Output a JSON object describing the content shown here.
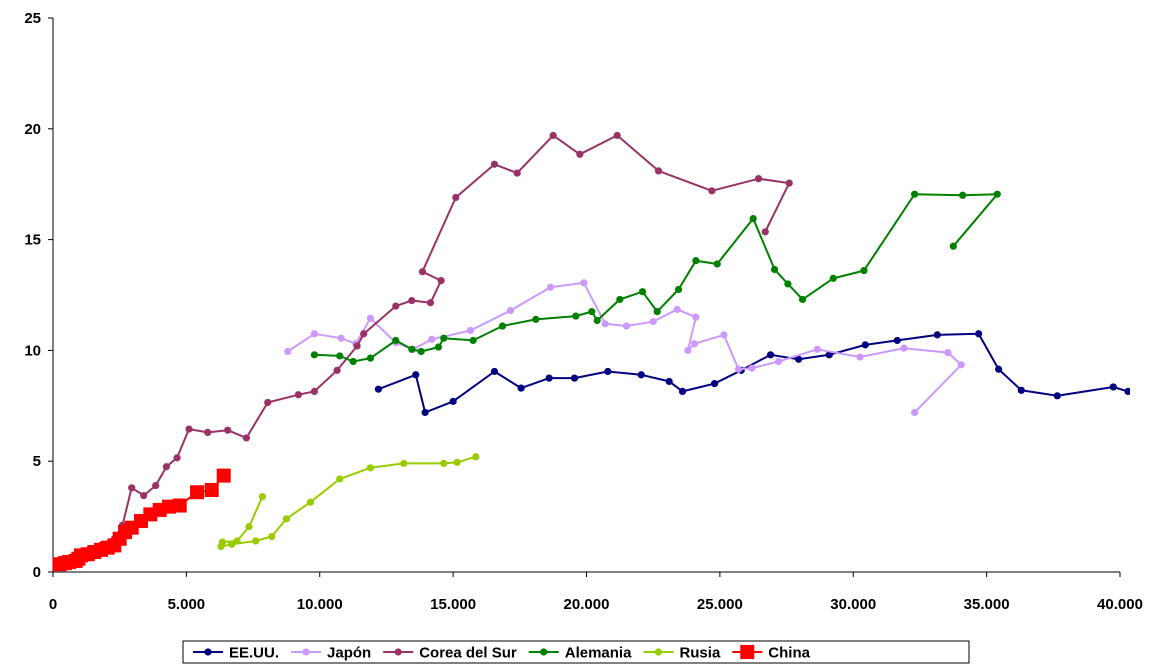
{
  "chart_data": {
    "type": "line",
    "title": "",
    "xlabel": "",
    "ylabel": "",
    "xlim": [
      0,
      40000
    ],
    "ylim": [
      0,
      25
    ],
    "x_ticks": [
      0,
      5000,
      10000,
      15000,
      20000,
      25000,
      30000,
      35000,
      40000
    ],
    "x_tick_labels": [
      "0",
      "5.000",
      "10.000",
      "15.000",
      "20.000",
      "25.000",
      "30.000",
      "35.000",
      "40.000"
    ],
    "y_ticks": [
      0,
      5,
      10,
      15,
      20,
      25
    ],
    "y_tick_labels": [
      "0",
      "5",
      "10",
      "15",
      "20",
      "25"
    ],
    "grid": false,
    "legend_position": "bottom",
    "series": [
      {
        "name": "EE.UU.",
        "color": "#000080",
        "marker": "circle",
        "points": [
          [
            12200,
            8.25
          ],
          [
            13600,
            8.9
          ],
          [
            13950,
            7.2
          ],
          [
            15000,
            7.7
          ],
          [
            16550,
            9.05
          ],
          [
            17550,
            8.3
          ],
          [
            18600,
            8.75
          ],
          [
            19550,
            8.75
          ],
          [
            20800,
            9.05
          ],
          [
            22050,
            8.9
          ],
          [
            23100,
            8.6
          ],
          [
            23600,
            8.15
          ],
          [
            24800,
            8.5
          ],
          [
            25800,
            9.1
          ],
          [
            26900,
            9.8
          ],
          [
            27950,
            9.6
          ],
          [
            29100,
            9.8
          ],
          [
            30450,
            10.25
          ],
          [
            31650,
            10.45
          ],
          [
            33150,
            10.7
          ],
          [
            34700,
            10.75
          ],
          [
            35450,
            9.15
          ],
          [
            36300,
            8.2
          ],
          [
            37650,
            7.95
          ],
          [
            39750,
            8.35
          ],
          [
            40300,
            8.15
          ]
        ]
      },
      {
        "name": "Japón",
        "color": "#cc99ff",
        "marker": "circle",
        "points": [
          [
            8800,
            9.95
          ],
          [
            9800,
            10.75
          ],
          [
            10800,
            10.55
          ],
          [
            11350,
            10.3
          ],
          [
            11900,
            11.45
          ],
          [
            12850,
            10.35
          ],
          [
            13500,
            10.05
          ],
          [
            14200,
            10.5
          ],
          [
            15650,
            10.9
          ],
          [
            17150,
            11.8
          ],
          [
            18650,
            12.85
          ],
          [
            19900,
            13.05
          ],
          [
            20700,
            11.2
          ],
          [
            21500,
            11.1
          ],
          [
            22500,
            11.3
          ],
          [
            23400,
            11.85
          ],
          [
            24100,
            11.5
          ],
          [
            23800,
            10
          ],
          [
            24050,
            10.3
          ],
          [
            25150,
            10.7
          ],
          [
            25700,
            9.15
          ],
          [
            26200,
            9.2
          ],
          [
            27200,
            9.5
          ],
          [
            28650,
            10.05
          ],
          [
            30250,
            9.7
          ],
          [
            31900,
            10.1
          ],
          [
            33550,
            9.9
          ],
          [
            34050,
            9.35
          ],
          [
            32300,
            7.2
          ]
        ]
      },
      {
        "name": "Corea del Sur",
        "color": "#993366",
        "marker": "circle",
        "points": [
          [
            1100,
            0.85
          ],
          [
            1400,
            1.05
          ],
          [
            1800,
            1.2
          ],
          [
            2300,
            1.5
          ],
          [
            2600,
            2.1
          ],
          [
            2950,
            3.8
          ],
          [
            3400,
            3.45
          ],
          [
            3850,
            3.9
          ],
          [
            4250,
            4.75
          ],
          [
            4650,
            5.15
          ],
          [
            5100,
            6.45
          ],
          [
            5800,
            6.3
          ],
          [
            6550,
            6.4
          ],
          [
            7250,
            6.05
          ],
          [
            8050,
            7.65
          ],
          [
            9200,
            8.0
          ],
          [
            9800,
            8.15
          ],
          [
            10650,
            9.1
          ],
          [
            11400,
            10.2
          ],
          [
            11650,
            10.75
          ],
          [
            12850,
            12.0
          ],
          [
            13450,
            12.25
          ],
          [
            14150,
            12.15
          ],
          [
            14550,
            13.15
          ],
          [
            13850,
            13.55
          ],
          [
            15100,
            16.9
          ],
          [
            16550,
            18.4
          ],
          [
            17400,
            18.0
          ],
          [
            18750,
            19.7
          ],
          [
            19750,
            18.85
          ],
          [
            21150,
            19.7
          ],
          [
            22700,
            18.1
          ],
          [
            24700,
            17.2
          ],
          [
            26450,
            17.75
          ],
          [
            27600,
            17.55
          ],
          [
            26700,
            15.35
          ]
        ]
      },
      {
        "name": "Alemania",
        "color": "#008000",
        "marker": "circle",
        "points": [
          [
            9800,
            9.8
          ],
          [
            10750,
            9.75
          ],
          [
            11250,
            9.5
          ],
          [
            11900,
            9.65
          ],
          [
            12850,
            10.45
          ],
          [
            13450,
            10.05
          ],
          [
            13800,
            9.95
          ],
          [
            14450,
            10.15
          ],
          [
            14650,
            10.55
          ],
          [
            15750,
            10.45
          ],
          [
            16850,
            11.1
          ],
          [
            18100,
            11.4
          ],
          [
            19600,
            11.55
          ],
          [
            20200,
            11.75
          ],
          [
            20400,
            11.35
          ],
          [
            21250,
            12.3
          ],
          [
            22100,
            12.65
          ],
          [
            22650,
            11.75
          ],
          [
            23450,
            12.75
          ],
          [
            24100,
            14.05
          ],
          [
            24900,
            13.9
          ],
          [
            26250,
            15.95
          ],
          [
            27050,
            13.65
          ],
          [
            27550,
            13.0
          ],
          [
            28100,
            12.3
          ],
          [
            29250,
            13.25
          ],
          [
            30400,
            13.6
          ],
          [
            32300,
            17.05
          ],
          [
            34100,
            17.0
          ],
          [
            35400,
            17.05
          ],
          [
            33750,
            14.7
          ]
        ]
      },
      {
        "name": "Rusia",
        "color": "#99cc00",
        "marker": "circle",
        "points": [
          [
            7850,
            3.4
          ],
          [
            7350,
            2.05
          ],
          [
            6900,
            1.4
          ],
          [
            6350,
            1.35
          ],
          [
            6300,
            1.15
          ],
          [
            6700,
            1.25
          ],
          [
            7600,
            1.4
          ],
          [
            8200,
            1.6
          ],
          [
            8750,
            2.4
          ],
          [
            9650,
            3.15
          ],
          [
            10750,
            4.2
          ],
          [
            11900,
            4.7
          ],
          [
            13150,
            4.9
          ],
          [
            14650,
            4.9
          ],
          [
            15150,
            4.95
          ],
          [
            15850,
            5.2
          ]
        ]
      },
      {
        "name": "China",
        "color": "#ff0000",
        "marker": "square",
        "points": [
          [
            250,
            0.35
          ],
          [
            450,
            0.4
          ],
          [
            600,
            0.45
          ],
          [
            850,
            0.5
          ],
          [
            950,
            0.6
          ],
          [
            1050,
            0.75
          ],
          [
            1300,
            0.8
          ],
          [
            1550,
            0.9
          ],
          [
            1800,
            1.0
          ],
          [
            2050,
            1.1
          ],
          [
            2300,
            1.2
          ],
          [
            2500,
            1.5
          ],
          [
            2700,
            1.8
          ],
          [
            2950,
            2.0
          ],
          [
            3300,
            2.3
          ],
          [
            3650,
            2.6
          ],
          [
            4000,
            2.8
          ],
          [
            4350,
            2.95
          ],
          [
            4750,
            3.0
          ],
          [
            5400,
            3.6
          ],
          [
            5950,
            3.7
          ],
          [
            6400,
            4.35
          ]
        ]
      }
    ]
  }
}
